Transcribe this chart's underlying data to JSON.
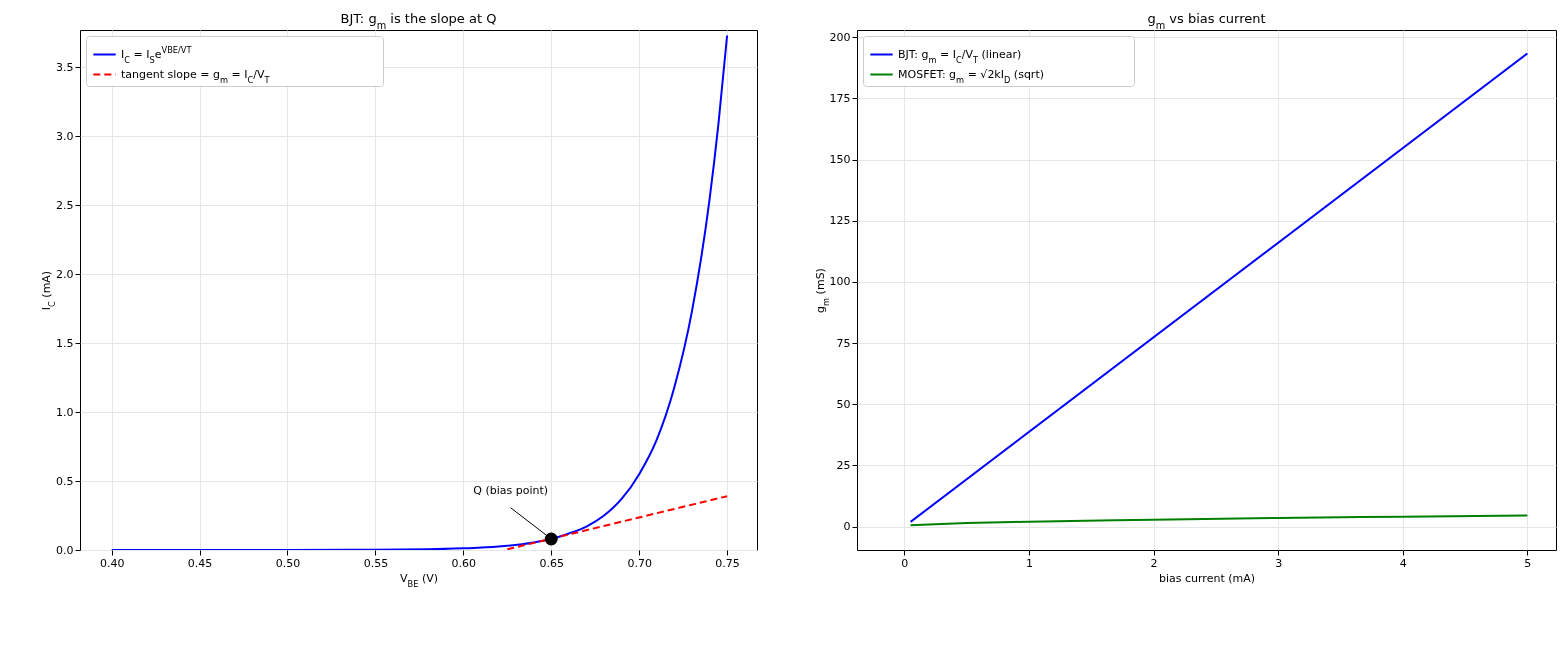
{
  "chart_data": [
    {
      "type": "line",
      "title": "BJT: g$_{m}$ is the slope at Q",
      "xlabel": "V$_{BE}$ (V)",
      "ylabel": "I$_{C}$ (mA)",
      "xlim": [
        0.382,
        0.767
      ],
      "ylim": [
        0,
        3.77
      ],
      "xticks": [
        {
          "value": 0.4,
          "label": "0.40"
        },
        {
          "value": 0.45,
          "label": "0.45"
        },
        {
          "value": 0.5,
          "label": "0.50"
        },
        {
          "value": 0.55,
          "label": "0.55"
        },
        {
          "value": 0.6,
          "label": "0.60"
        },
        {
          "value": 0.65,
          "label": "0.65"
        },
        {
          "value": 0.7,
          "label": "0.70"
        },
        {
          "value": 0.75,
          "label": "0.75"
        }
      ],
      "yticks": [
        {
          "value": 0,
          "label": "0.0"
        },
        {
          "value": 0.5,
          "label": "0.5"
        },
        {
          "value": 1,
          "label": "1.0"
        },
        {
          "value": 1.5,
          "label": "1.5"
        },
        {
          "value": 2,
          "label": "2.0"
        },
        {
          "value": 2.5,
          "label": "2.5"
        },
        {
          "value": 3,
          "label": "3.0"
        },
        {
          "value": 3.5,
          "label": "3.5"
        }
      ],
      "grid": true,
      "legend": "top left",
      "series": [
        {
          "name": "I$_{C}$ = I$_{S}$e$^{VBE/VT}$",
          "color": "#0000ff",
          "x": [
            0.4,
            0.45,
            0.5,
            0.55,
            0.58,
            0.6,
            0.62,
            0.64,
            0.65,
            0.66,
            0.67,
            0.68,
            0.69,
            0.7,
            0.71,
            0.72,
            0.73,
            0.74,
            0.745,
            0.75
          ],
          "values": [
            0,
            0,
            0,
            0.002,
            0.005,
            0.012,
            0.025,
            0.055,
            0.08,
            0.12,
            0.17,
            0.25,
            0.37,
            0.55,
            0.8,
            1.18,
            1.73,
            2.54,
            3.08,
            3.73
          ]
        },
        {
          "name": "tangent slope = g$_{m}$ = I$_{C}$/V$_{T}$",
          "color": "#ff0000",
          "line_style": "dashed",
          "x": [
            0.625,
            0.75
          ],
          "values": [
            0.005,
            0.39
          ]
        },
        {
          "type": "scatter",
          "marker": "circle",
          "color": "#000000",
          "x": [
            0.65
          ],
          "values": [
            0.08
          ]
        }
      ],
      "annotations": [
        {
          "text": "Q (bias point)",
          "x": 0.65,
          "y": 0.08
        }
      ]
    },
    {
      "type": "line",
      "title": "g$_{m}$ vs bias current",
      "xlabel": "bias current (mA)",
      "ylabel": "g$_{m}$ (mS)",
      "xlim": [
        -0.38,
        5.23
      ],
      "ylim": [
        -9.6,
        203
      ],
      "xticks": [
        0,
        1,
        2,
        3,
        4,
        5
      ],
      "yticks": [
        0,
        25,
        50,
        75,
        100,
        125,
        150,
        175,
        200
      ],
      "grid": true,
      "legend": "top left",
      "series": [
        {
          "name": "BJT: g$_{m}$ = I$_{C}$/V$_{T}$ (linear)",
          "color": "#0000ff",
          "x": [
            0.05,
            5
          ],
          "values": [
            1.9,
            193.4
          ]
        },
        {
          "name": "MOSFET: g$_{m}$ = √2kI$_{D}$ (sqrt)",
          "color": "#008000",
          "x": [
            0.05,
            0.5,
            1,
            2,
            3,
            4,
            5
          ],
          "values": [
            0.5,
            1.4,
            2,
            2.8,
            3.5,
            4,
            4.5
          ]
        }
      ]
    }
  ]
}
